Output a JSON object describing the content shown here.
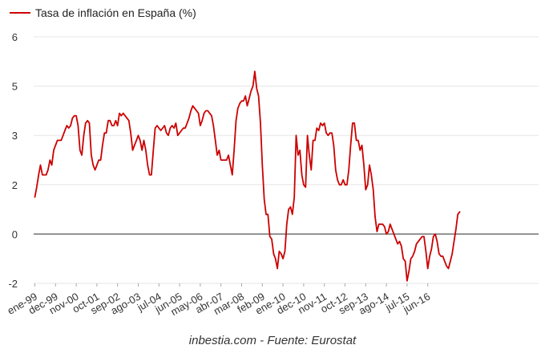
{
  "chart_data": {
    "type": "line",
    "title": "",
    "xlabel": "",
    "ylabel": "",
    "ylim": [
      -2,
      6
    ],
    "yticks": [
      -2,
      0,
      2,
      3,
      5,
      6
    ],
    "grid": "horizontal",
    "legend_position": "top-left",
    "zero_line_color": "#555555",
    "grid_color": "#e6e6e6",
    "series": [
      {
        "name": "Tasa de inflación en España (%)",
        "color": "#cc0000",
        "start": "1999-01",
        "values": [
          1.5,
          1.9,
          2.2,
          2.4,
          2.2,
          2.2,
          2.2,
          2.3,
          2.5,
          2.4,
          2.7,
          2.8,
          2.9,
          2.9,
          2.9,
          3.0,
          3.2,
          3.4,
          3.3,
          3.4,
          3.7,
          3.8,
          3.8,
          3.4,
          2.7,
          2.6,
          3.0,
          3.5,
          3.6,
          3.5,
          2.6,
          2.4,
          2.3,
          2.4,
          2.5,
          2.5,
          2.8,
          3.1,
          3.1,
          3.6,
          3.6,
          3.4,
          3.4,
          3.6,
          3.4,
          3.9,
          3.8,
          3.9,
          3.8,
          3.7,
          3.6,
          3.1,
          2.7,
          2.8,
          2.9,
          3.0,
          2.9,
          2.7,
          2.9,
          2.7,
          2.4,
          2.2,
          2.2,
          2.7,
          3.3,
          3.4,
          3.3,
          3.2,
          3.3,
          3.4,
          3.1,
          3.0,
          3.3,
          3.4,
          3.3,
          3.5,
          3.0,
          3.1,
          3.2,
          3.3,
          3.3,
          3.5,
          3.7,
          4.0,
          4.2,
          4.1,
          4.0,
          3.9,
          3.4,
          3.6,
          3.9,
          4.0,
          4.0,
          3.9,
          3.8,
          3.4,
          2.9,
          2.6,
          2.7,
          2.5,
          2.5,
          2.5,
          2.5,
          2.6,
          2.4,
          2.2,
          2.7,
          3.6,
          4.1,
          4.3,
          4.4,
          4.4,
          4.6,
          4.2,
          4.5,
          4.8,
          5.0,
          5.3,
          4.9,
          4.6,
          3.5,
          2.4,
          1.4,
          0.8,
          0.8,
          -0.1,
          -0.2,
          -0.8,
          -1.0,
          -1.4,
          -0.7,
          -0.8,
          -1.0,
          -0.7,
          0.4,
          1.0,
          1.1,
          0.8,
          1.5,
          3.0,
          2.6,
          2.7,
          2.2,
          2.0,
          1.9,
          3.0,
          2.6,
          2.3,
          2.9,
          2.9,
          3.3,
          3.2,
          3.5,
          3.4,
          3.5,
          3.1,
          3.0,
          3.1,
          3.1,
          2.8,
          2.3,
          2.1,
          2.0,
          2.0,
          2.1,
          2.0,
          2.0,
          2.3,
          2.8,
          3.5,
          3.5,
          2.9,
          2.9,
          2.7,
          2.8,
          2.4,
          1.8,
          2.0,
          2.4,
          2.2,
          1.8,
          0.7,
          0.1,
          0.4,
          0.4,
          0.4,
          0.3,
          0.0,
          0.1,
          0.4,
          0.2,
          0.0,
          -0.2,
          -0.4,
          -0.3,
          -0.5,
          -1.0,
          -1.1,
          -1.9,
          -1.5,
          -1.0,
          -0.9,
          -0.7,
          -0.4,
          -0.3,
          -0.2,
          -0.1,
          -0.1,
          -0.7,
          -1.4,
          -0.9,
          -0.6,
          -0.1,
          0.0,
          -0.3,
          -0.8,
          -0.9,
          -0.9,
          -1.1,
          -1.3,
          -1.4,
          -1.1,
          -0.8,
          -0.3,
          0.2,
          0.8,
          0.9
        ]
      }
    ],
    "x_tick_labels": [
      "ene-99",
      "dec-99",
      "nov-00",
      "oct-01",
      "sep-02",
      "ago-03",
      "jul-04",
      "jun-05",
      "may-06",
      "abr-07",
      "mar-08",
      "feb-09",
      "ene-10",
      "dec-10",
      "nov-11",
      "oct-12",
      "sep-13",
      "ago-14",
      "jul-15",
      "jun-16"
    ],
    "x_tick_every_months": 11
  },
  "legend": {
    "label": "Tasa de inflación en España (%)"
  },
  "source": "inbestia.com - Fuente: Eurostat"
}
